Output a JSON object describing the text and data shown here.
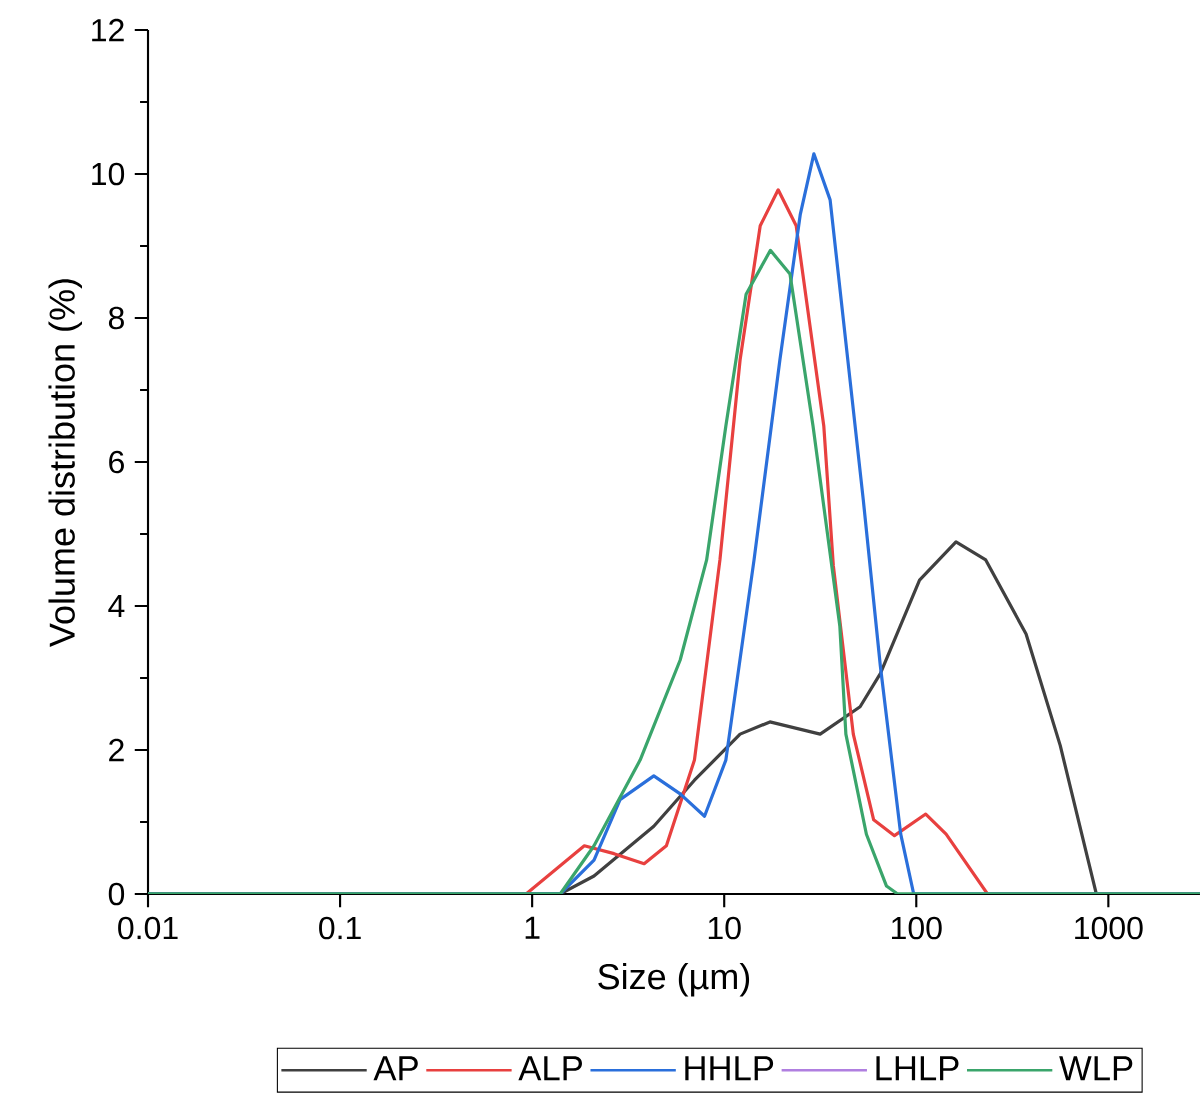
{
  "chart_data": {
    "type": "line",
    "xlabel": "Size (µm)",
    "ylabel": "Volume distribution (%)",
    "log": "x",
    "legend": "bottom",
    "xlim": [
      0.01,
      3000
    ],
    "ylim": [
      0,
      12
    ],
    "xticks": [
      0.01,
      0.1,
      1,
      10,
      100,
      1000
    ],
    "yticks": [
      0,
      2,
      4,
      6,
      8,
      10,
      12
    ],
    "series": [
      {
        "name": "AP",
        "color": "#404040",
        "x": [
          0.01,
          1.4,
          2.1,
          4.3,
          7.0,
          12.1,
          17.3,
          31.6,
          51,
          65,
          104,
          161,
          230,
          373,
          562,
          866,
          3000
        ],
        "values": [
          0,
          0,
          0.25,
          0.94,
          1.58,
          2.22,
          2.39,
          2.22,
          2.6,
          3.06,
          4.36,
          4.89,
          4.64,
          3.61,
          2.06,
          0,
          0
        ]
      },
      {
        "name": "ALP",
        "color": "#e8403f",
        "x": [
          0.01,
          0.93,
          1.87,
          2.67,
          3.83,
          5.0,
          7.0,
          9.5,
          12.1,
          15.4,
          19.1,
          23.7,
          33,
          37,
          47,
          60,
          77,
          112,
          143,
          235,
          3000
        ],
        "values": [
          0,
          0,
          0.67,
          0.56,
          0.42,
          0.67,
          1.86,
          4.64,
          7.42,
          9.28,
          9.78,
          9.28,
          6.5,
          4.56,
          2.22,
          1.03,
          0.81,
          1.11,
          0.83,
          0,
          0
        ]
      },
      {
        "name": "HHLP",
        "color": "#2a6fdb",
        "x": [
          0.01,
          1.4,
          2.1,
          2.87,
          4.3,
          5.9,
          7.9,
          10.2,
          14.3,
          19.5,
          24.9,
          29.3,
          35.6,
          53,
          65,
          83,
          97,
          3000
        ],
        "values": [
          0,
          0,
          0.47,
          1.31,
          1.64,
          1.39,
          1.08,
          1.86,
          4.64,
          7.42,
          9.44,
          10.28,
          9.64,
          5.47,
          3.17,
          0.83,
          0,
          0
        ]
      },
      {
        "name": "LHLP",
        "color": "#b07fe0"
      },
      {
        "name": "WLP",
        "color": "#3aa56b",
        "x": [
          0.01,
          1.4,
          2.1,
          3.65,
          5.9,
          8.1,
          10.2,
          13,
          17.4,
          22,
          29,
          40,
          43,
          55,
          70,
          80,
          3000
        ],
        "values": [
          0,
          0,
          0.67,
          1.86,
          3.25,
          4.64,
          6.5,
          8.33,
          8.94,
          8.61,
          6.5,
          3.72,
          2.22,
          0.83,
          0.11,
          0,
          0
        ]
      }
    ]
  }
}
